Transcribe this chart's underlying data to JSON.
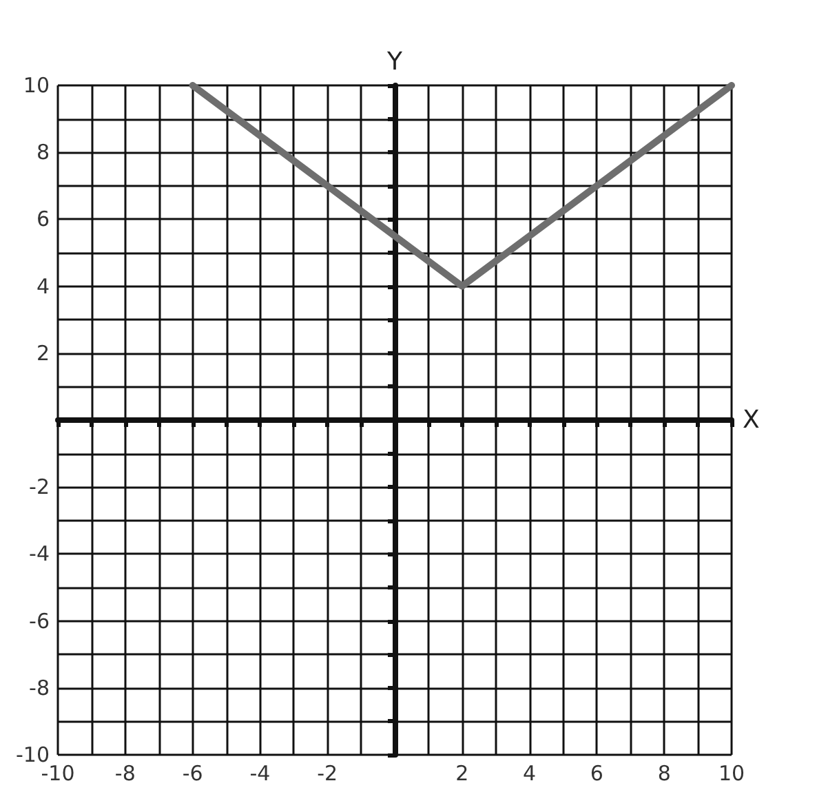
{
  "chart_data": {
    "type": "line",
    "xlabel": "X",
    "ylabel": "Y",
    "x": [
      -6,
      -2,
      2,
      6,
      10
    ],
    "series": [
      {
        "color": "#6e6e6e",
        "values": [
          10,
          7,
          4,
          7,
          10
        ]
      }
    ],
    "xlim": [
      -10,
      10
    ],
    "ylim": [
      -10,
      10
    ],
    "xticks": [
      -10,
      -8,
      -6,
      -4,
      -2,
      2,
      4,
      6,
      8,
      10
    ],
    "yticks": [
      -10,
      -8,
      -6,
      -4,
      -2,
      2,
      4,
      6,
      8,
      10
    ],
    "grid": true,
    "marker": "none",
    "line_style": "solid"
  }
}
